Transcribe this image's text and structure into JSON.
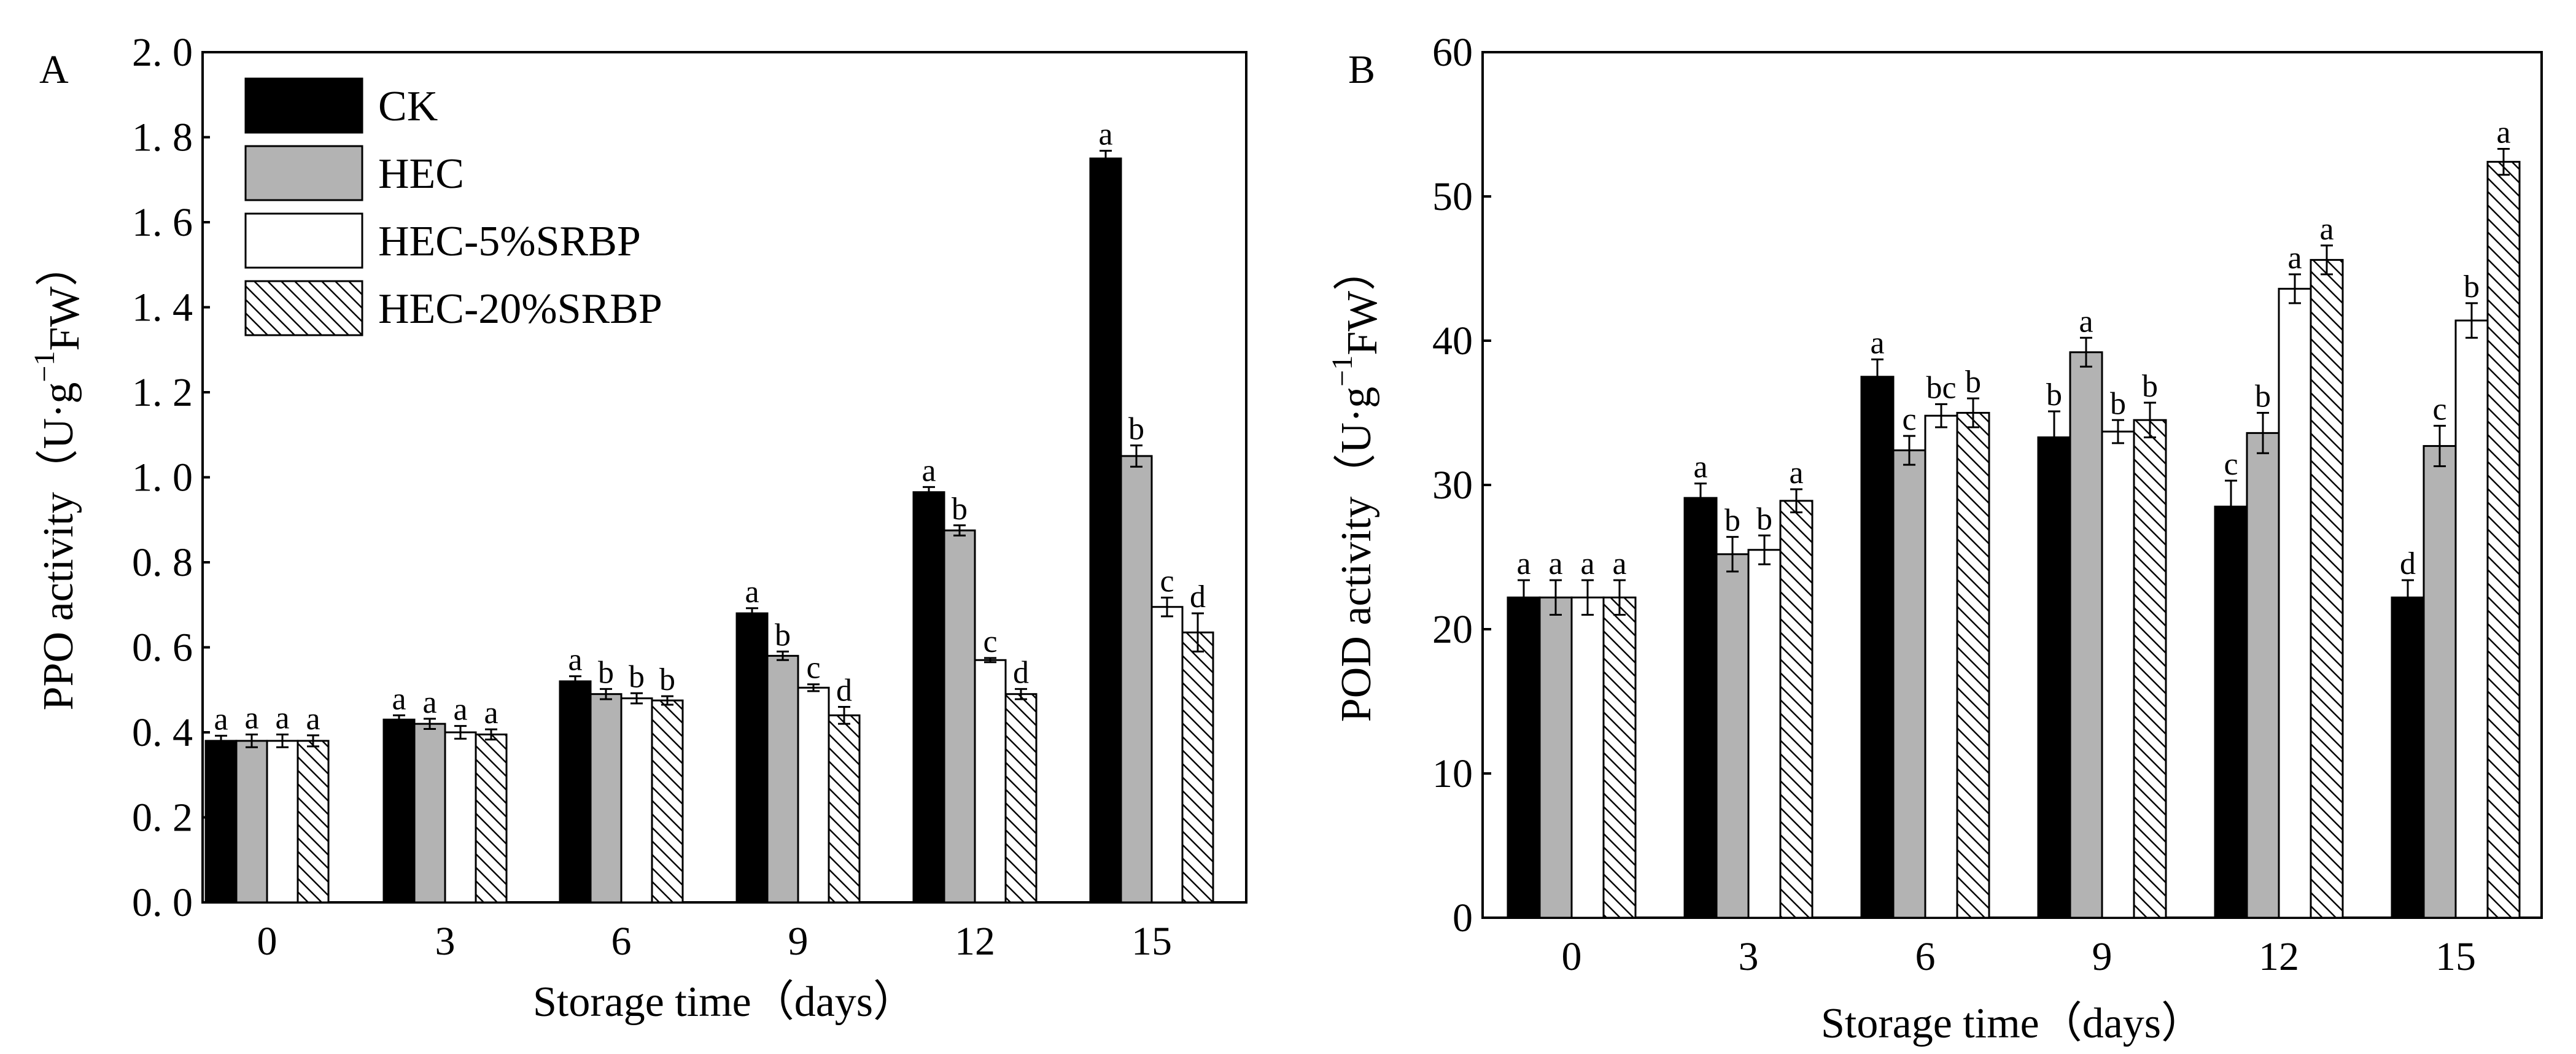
{
  "chart_data": [
    {
      "type": "bar",
      "panel_label": "A",
      "xlabel": "Storage time（days）",
      "ylabel": "PPO activity（U·g",
      "ylabel_sup": "−1",
      "ylabel_sub": "FW",
      "ylabel_close": "）",
      "ylim": [
        0,
        2.0
      ],
      "yticks": [
        "0. 0",
        "0. 2",
        "0. 4",
        "0. 6",
        "0. 8",
        "1. 0",
        "1. 2",
        "1. 4",
        "1. 6",
        "1. 8",
        "2. 0"
      ],
      "categories": [
        "0",
        "3",
        "6",
        "9",
        "12",
        "15"
      ],
      "legend": {
        "position": "top-left"
      },
      "series": [
        {
          "name": "CK",
          "fill": "solid",
          "values": [
            0.38,
            0.43,
            0.52,
            0.68,
            0.965,
            1.75
          ],
          "errors": [
            0.012,
            0.01,
            0.012,
            0.012,
            0.012,
            0.018
          ],
          "letters": [
            "a",
            "a",
            "a",
            "a",
            "a",
            "a"
          ]
        },
        {
          "name": "HEC",
          "fill": "gray",
          "values": [
            0.38,
            0.42,
            0.49,
            0.58,
            0.875,
            1.05
          ],
          "errors": [
            0.015,
            0.012,
            0.012,
            0.01,
            0.012,
            0.025
          ],
          "letters": [
            "a",
            "a",
            "b",
            "b",
            "b",
            "b"
          ]
        },
        {
          "name": "HEC-5%SRBP",
          "fill": "white",
          "values": [
            0.38,
            0.4,
            0.48,
            0.505,
            0.57,
            0.695
          ],
          "errors": [
            0.015,
            0.015,
            0.012,
            0.008,
            0.005,
            0.022
          ],
          "letters": [
            "a",
            "a",
            "b",
            "c",
            "c",
            "c"
          ]
        },
        {
          "name": "HEC-20%SRBP",
          "fill": "hatch",
          "values": [
            0.38,
            0.395,
            0.475,
            0.44,
            0.49,
            0.635
          ],
          "errors": [
            0.013,
            0.012,
            0.01,
            0.02,
            0.012,
            0.045
          ],
          "letters": [
            "a",
            "a",
            "b",
            "d",
            "d",
            "d"
          ]
        }
      ]
    },
    {
      "type": "bar",
      "panel_label": "B",
      "xlabel": "Storage time（days）",
      "ylabel": "POD activity（U·g",
      "ylabel_sup": "−1",
      "ylabel_sub": "FW",
      "ylabel_close": "）",
      "ylim": [
        0,
        60
      ],
      "yticks": [
        "0",
        "10",
        "20",
        "30",
        "40",
        "50",
        "60"
      ],
      "categories": [
        "0",
        "3",
        "6",
        "9",
        "12",
        "15"
      ],
      "series": [
        {
          "name": "CK",
          "fill": "solid",
          "values": [
            22.2,
            29.1,
            37.5,
            33.3,
            28.5,
            22.2
          ],
          "errors": [
            1.2,
            1.0,
            1.2,
            1.8,
            1.8,
            1.2
          ],
          "letters": [
            "a",
            "a",
            "a",
            "b",
            "c",
            "d"
          ]
        },
        {
          "name": "HEC",
          "fill": "gray",
          "values": [
            22.2,
            25.2,
            32.4,
            39.2,
            33.6,
            32.7
          ],
          "errors": [
            1.2,
            1.2,
            1.0,
            1.0,
            1.4,
            1.4
          ],
          "letters": [
            "a",
            "b",
            "c",
            "a",
            "b",
            "c"
          ]
        },
        {
          "name": "HEC-5%SRBP",
          "fill": "white",
          "values": [
            22.2,
            25.5,
            34.8,
            33.7,
            43.6,
            41.4
          ],
          "errors": [
            1.2,
            1.0,
            0.8,
            0.8,
            1.0,
            1.2
          ],
          "letters": [
            "a",
            "b",
            "bc",
            "b",
            "a",
            "b"
          ]
        },
        {
          "name": "HEC-20%SRBP",
          "fill": "hatch",
          "values": [
            22.2,
            28.9,
            35.0,
            34.5,
            45.6,
            52.4
          ],
          "errors": [
            1.2,
            0.8,
            1.0,
            1.2,
            1.0,
            0.9
          ],
          "letters": [
            "a",
            "a",
            "b",
            "b",
            "a",
            "a"
          ]
        }
      ]
    }
  ]
}
